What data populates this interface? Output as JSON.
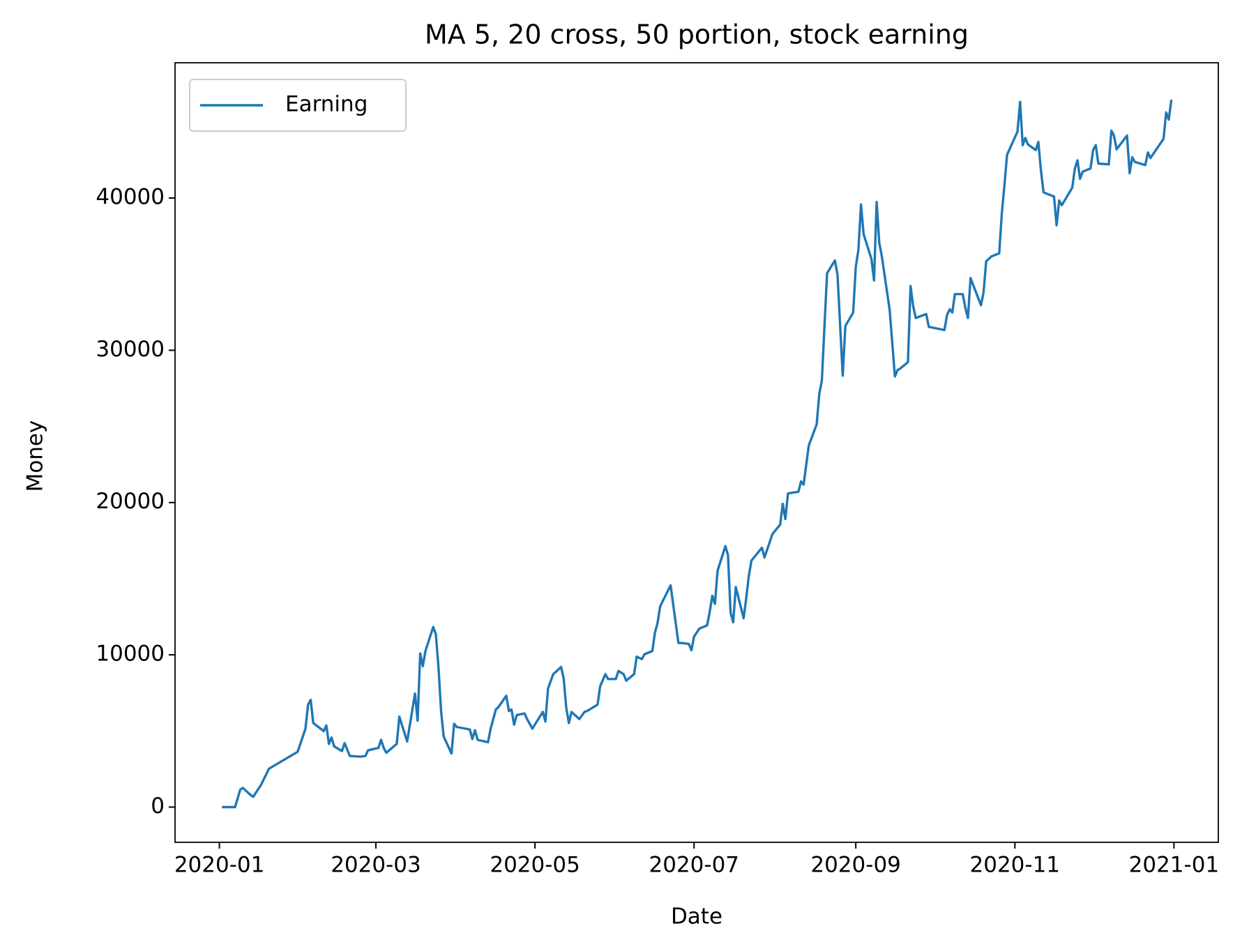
{
  "chart_data": {
    "type": "line",
    "title": "MA 5, 20 cross, 50 portion, stock earning",
    "x_label": "Date",
    "y_label": "Money",
    "xlim": [
      "2019-12-15",
      "2021-01-18"
    ],
    "xticks": [
      {
        "value": "2020-01-01",
        "label": "2020-01"
      },
      {
        "value": "2020-03-01",
        "label": "2020-03"
      },
      {
        "value": "2020-05-01",
        "label": "2020-05"
      },
      {
        "value": "2020-07-01",
        "label": "2020-07"
      },
      {
        "value": "2020-09-01",
        "label": "2020-09"
      },
      {
        "value": "2020-11-01",
        "label": "2020-11"
      },
      {
        "value": "2021-01-01",
        "label": "2021-01"
      }
    ],
    "ylim": [
      -2313,
      48883
    ],
    "yticks": [
      0,
      10000,
      20000,
      30000,
      40000
    ],
    "grid": false,
    "legend": "upper left",
    "x": [
      "2020-01-02",
      "2020-01-07",
      "2020-01-09",
      "2020-01-10",
      "2020-01-13",
      "2020-01-14",
      "2020-01-15",
      "2020-01-17",
      "2020-01-20",
      "2020-01-31",
      "2020-02-03",
      "2020-02-04",
      "2020-02-05",
      "2020-02-06",
      "2020-02-10",
      "2020-02-11",
      "2020-02-12",
      "2020-02-13",
      "2020-02-14",
      "2020-02-17",
      "2020-02-18",
      "2020-02-20",
      "2020-02-24",
      "2020-02-26",
      "2020-02-27",
      "2020-03-02",
      "2020-03-03",
      "2020-03-04",
      "2020-03-05",
      "2020-03-09",
      "2020-03-10",
      "2020-03-13",
      "2020-03-16",
      "2020-03-17",
      "2020-03-18",
      "2020-03-19",
      "2020-03-20",
      "2020-03-23",
      "2020-03-24",
      "2020-03-25",
      "2020-03-26",
      "2020-03-27",
      "2020-03-30",
      "2020-03-31",
      "2020-04-01",
      "2020-04-06",
      "2020-04-07",
      "2020-04-08",
      "2020-04-09",
      "2020-04-13",
      "2020-04-14",
      "2020-04-16",
      "2020-04-17",
      "2020-04-20",
      "2020-04-21",
      "2020-04-22",
      "2020-04-23",
      "2020-04-24",
      "2020-04-27",
      "2020-04-28",
      "2020-04-30",
      "2020-05-04",
      "2020-05-05",
      "2020-05-06",
      "2020-05-08",
      "2020-05-11",
      "2020-05-12",
      "2020-05-13",
      "2020-05-14",
      "2020-05-15",
      "2020-05-18",
      "2020-05-20",
      "2020-05-21",
      "2020-05-25",
      "2020-05-26",
      "2020-05-28",
      "2020-05-29",
      "2020-06-01",
      "2020-06-02",
      "2020-06-04",
      "2020-06-05",
      "2020-06-08",
      "2020-06-09",
      "2020-06-11",
      "2020-06-12",
      "2020-06-15",
      "2020-06-16",
      "2020-06-17",
      "2020-06-18",
      "2020-06-22",
      "2020-06-25",
      "2020-06-26",
      "2020-06-29",
      "2020-06-30",
      "2020-07-01",
      "2020-07-03",
      "2020-07-06",
      "2020-07-07",
      "2020-07-08",
      "2020-07-09",
      "2020-07-10",
      "2020-07-13",
      "2020-07-14",
      "2020-07-15",
      "2020-07-16",
      "2020-07-17",
      "2020-07-20",
      "2020-07-21",
      "2020-07-22",
      "2020-07-23",
      "2020-07-27",
      "2020-07-28",
      "2020-07-30",
      "2020-07-31",
      "2020-08-03",
      "2020-08-04",
      "2020-08-05",
      "2020-08-06",
      "2020-08-10",
      "2020-08-11",
      "2020-08-12",
      "2020-08-14",
      "2020-08-17",
      "2020-08-18",
      "2020-08-19",
      "2020-08-20",
      "2020-08-21",
      "2020-08-24",
      "2020-08-25",
      "2020-08-27",
      "2020-08-28",
      "2020-08-31",
      "2020-09-01",
      "2020-09-02",
      "2020-09-03",
      "2020-09-04",
      "2020-09-07",
      "2020-09-08",
      "2020-09-09",
      "2020-09-10",
      "2020-09-11",
      "2020-09-14",
      "2020-09-16",
      "2020-09-17",
      "2020-09-18",
      "2020-09-21",
      "2020-09-22",
      "2020-09-23",
      "2020-09-24",
      "2020-09-28",
      "2020-09-29",
      "2020-10-05",
      "2020-10-06",
      "2020-10-07",
      "2020-10-08",
      "2020-10-09",
      "2020-10-12",
      "2020-10-13",
      "2020-10-14",
      "2020-10-15",
      "2020-10-19",
      "2020-10-20",
      "2020-10-21",
      "2020-10-23",
      "2020-10-26",
      "2020-10-27",
      "2020-10-28",
      "2020-10-29",
      "2020-11-02",
      "2020-11-03",
      "2020-11-04",
      "2020-11-05",
      "2020-11-06",
      "2020-11-09",
      "2020-11-10",
      "2020-11-11",
      "2020-11-12",
      "2020-11-16",
      "2020-11-17",
      "2020-11-18",
      "2020-11-19",
      "2020-11-23",
      "2020-11-24",
      "2020-11-25",
      "2020-11-26",
      "2020-11-27",
      "2020-11-30",
      "2020-12-01",
      "2020-12-02",
      "2020-12-03",
      "2020-12-07",
      "2020-12-08",
      "2020-12-09",
      "2020-12-10",
      "2020-12-14",
      "2020-12-15",
      "2020-12-16",
      "2020-12-17",
      "2020-12-21",
      "2020-12-22",
      "2020-12-23",
      "2020-12-28",
      "2020-12-29",
      "2020-12-30",
      "2020-12-31"
    ],
    "series": [
      {
        "name": "Earning",
        "color": "#1f77b4",
        "values": [
          0,
          0,
          1150,
          1260,
          790,
          680,
          950,
          1470,
          2520,
          3630,
          5150,
          6730,
          7040,
          5520,
          4990,
          5360,
          4150,
          4570,
          3990,
          3680,
          4200,
          3360,
          3310,
          3360,
          3730,
          3890,
          4420,
          3890,
          3570,
          4150,
          5940,
          4310,
          7460,
          5680,
          10090,
          9250,
          10250,
          11830,
          11350,
          9200,
          6310,
          4630,
          3520,
          5470,
          5260,
          5100,
          4470,
          5050,
          4420,
          4260,
          5150,
          6410,
          6570,
          7310,
          6310,
          6410,
          5410,
          6040,
          6150,
          5780,
          5150,
          6250,
          5620,
          7780,
          8730,
          9200,
          8460,
          6520,
          5520,
          6250,
          5780,
          6250,
          6310,
          6730,
          7940,
          8730,
          8410,
          8410,
          8940,
          8730,
          8300,
          8730,
          9880,
          9720,
          10040,
          10250,
          11460,
          12090,
          13190,
          14560,
          10780,
          10780,
          10720,
          10300,
          11200,
          11720,
          11930,
          12830,
          13880,
          13350,
          15510,
          17140,
          16560,
          12770,
          12140,
          14450,
          12400,
          13720,
          15190,
          16190,
          17030,
          16400,
          17400,
          17920,
          18550,
          19920,
          18920,
          20600,
          20710,
          21390,
          21180,
          23760,
          25130,
          27120,
          28020,
          31590,
          35060,
          35900,
          34950,
          28330,
          31590,
          32480,
          35480,
          36580,
          39580,
          37630,
          36000,
          34590,
          39740,
          37060,
          36160,
          32640,
          28280,
          28700,
          28800,
          29220,
          34220,
          32900,
          32120,
          32380,
          31540,
          31330,
          32330,
          32690,
          32480,
          33690,
          33690,
          32800,
          32120,
          34740,
          32960,
          33810,
          35850,
          36160,
          36370,
          39000,
          40840,
          42840,
          44360,
          46310,
          43470,
          43940,
          43520,
          43150,
          43680,
          41790,
          40370,
          40100,
          38210,
          39840,
          39530,
          40680,
          41940,
          42470,
          41260,
          41730,
          41940,
          43150,
          43470,
          42260,
          42210,
          44420,
          44100,
          43200,
          44100,
          41630,
          42680,
          42370,
          42160,
          42990,
          42630,
          43890,
          45620,
          45150,
          46460
        ]
      }
    ]
  }
}
